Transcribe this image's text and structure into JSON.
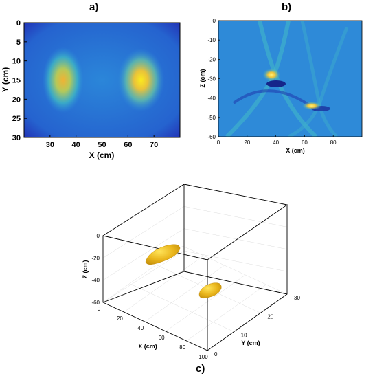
{
  "panel_labels": {
    "a": "a)",
    "b": "b)",
    "c": "c)"
  },
  "colors": {
    "background_low": "#1f3fc2",
    "mid": "#26a7d6",
    "high": "#f5dd2a",
    "blob": "#e8b81c"
  },
  "chart_data": [
    {
      "type": "heatmap",
      "panel": "a)",
      "xlabel": "X (cm)",
      "ylabel": "Y (cm)",
      "xlim": [
        20,
        80
      ],
      "ylim": [
        0,
        30
      ],
      "y_reversed": true,
      "xticks": [
        30,
        40,
        50,
        60,
        70
      ],
      "yticks": [
        0,
        5,
        10,
        15,
        20,
        25,
        30
      ],
      "hotspots": [
        {
          "x": 35,
          "y": 15,
          "intensity": 0.78
        },
        {
          "x": 65,
          "y": 15,
          "intensity": 1.0
        }
      ]
    },
    {
      "type": "heatmap",
      "panel": "b)",
      "xlabel": "X (cm)",
      "ylabel": "Z (cm)",
      "xlim": [
        0,
        100
      ],
      "ylim": [
        -60,
        0
      ],
      "xticks": [
        0,
        20,
        40,
        60,
        80
      ],
      "yticks": [
        0,
        -10,
        -20,
        -30,
        -40,
        -50,
        -60
      ],
      "hotspots": [
        {
          "x": 37,
          "z": -28,
          "intensity": 1.0
        },
        {
          "x": 65,
          "z": -44,
          "intensity": 0.9
        }
      ]
    },
    {
      "type": "scatter",
      "panel": "c)",
      "xlabel": "X (cm)",
      "ylabel": "Y (cm)",
      "zlabel": "Z (cm)",
      "xticks": [
        0,
        20,
        40,
        60,
        80,
        100
      ],
      "yticks": [
        0,
        10,
        20,
        30
      ],
      "zticks": [
        0,
        -20,
        -40,
        -60
      ],
      "objects": [
        {
          "x": 35,
          "y": 15,
          "z": -25
        },
        {
          "x": 65,
          "y": 15,
          "z": -45
        }
      ]
    }
  ]
}
